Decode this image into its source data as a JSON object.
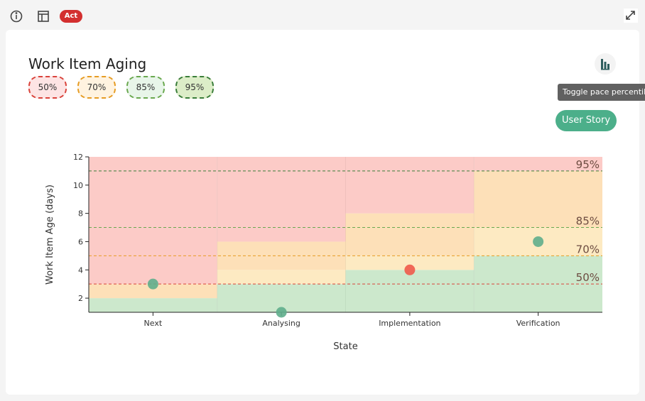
{
  "toolbar": {
    "badge": "Act"
  },
  "card": {
    "title": "Work Item Aging",
    "tooltip": "Toggle pace percentile",
    "button": "User Story"
  },
  "chart_data": {
    "type": "scatter",
    "categories": [
      "Next",
      "Analysing",
      "Implementation",
      "Verification"
    ],
    "values": [
      3,
      1,
      4,
      6
    ],
    "colors": [
      "#5fae8c",
      "#5fae8c",
      "#ef5a4b",
      "#5fae8c"
    ],
    "ylabel": "Work Item Age (days)",
    "xlabel": "State",
    "ylim": [
      1,
      12
    ],
    "yticks": [
      2,
      4,
      6,
      8,
      10,
      12
    ],
    "pace_bands": [
      {
        "color": "#cce8cc",
        "values": [
          2,
          3,
          4,
          5
        ]
      },
      {
        "color": "#fdeac2",
        "values": [
          2,
          4,
          5,
          7
        ]
      },
      {
        "color": "#fde0b8",
        "values": [
          3,
          6,
          8,
          11
        ]
      }
    ],
    "overflow_color": "#fccbc7",
    "percentiles": [
      {
        "name": "50%",
        "color": "#d9433b",
        "value": 3
      },
      {
        "name": "70%",
        "color": "#e69c24",
        "value": 5
      },
      {
        "name": "85%",
        "color": "#6aa84f",
        "value": 7
      },
      {
        "name": "95%",
        "color": "#3a7d3a",
        "value": 11
      }
    ]
  }
}
